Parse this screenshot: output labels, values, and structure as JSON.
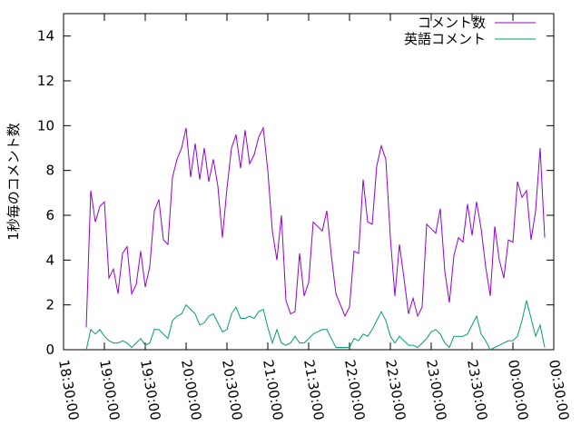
{
  "chart_data": {
    "type": "line",
    "y_label": "1秒毎のコメント数",
    "x": [
      "18:46:40",
      "18:50:00",
      "18:53:20",
      "18:56:40",
      "19:00:00",
      "19:03:20",
      "19:06:40",
      "19:10:00",
      "19:13:20",
      "19:16:40",
      "19:20:00",
      "19:23:20",
      "19:26:40",
      "19:30:00",
      "19:33:20",
      "19:36:40",
      "19:40:00",
      "19:43:20",
      "19:46:40",
      "19:50:00",
      "19:53:20",
      "19:56:40",
      "20:00:00",
      "20:03:20",
      "20:06:40",
      "20:10:00",
      "20:13:20",
      "20:16:40",
      "20:20:00",
      "20:23:20",
      "20:26:40",
      "20:30:00",
      "20:33:20",
      "20:36:40",
      "20:40:00",
      "20:43:20",
      "20:46:40",
      "20:50:00",
      "20:53:20",
      "20:56:40",
      "21:00:00",
      "21:03:20",
      "21:06:40",
      "21:10:00",
      "21:13:20",
      "21:16:40",
      "21:20:00",
      "21:23:20",
      "21:26:40",
      "21:30:00",
      "21:33:20",
      "21:36:40",
      "21:40:00",
      "21:43:20",
      "21:46:40",
      "21:50:00",
      "21:53:20",
      "21:56:40",
      "22:00:00",
      "22:03:20",
      "22:06:40",
      "22:10:00",
      "22:13:20",
      "22:16:40",
      "22:20:00",
      "22:23:20",
      "22:26:40",
      "22:30:00",
      "22:33:20",
      "22:36:40",
      "22:40:00",
      "22:43:20",
      "22:46:40",
      "22:50:00",
      "22:53:20",
      "22:56:40",
      "23:00:00",
      "23:03:20",
      "23:06:40",
      "23:10:00",
      "23:13:20",
      "23:16:40",
      "23:20:00",
      "23:23:20",
      "23:26:40",
      "23:30:00",
      "23:33:20",
      "23:36:40",
      "23:40:00",
      "23:43:20",
      "23:46:40",
      "23:50:00",
      "23:53:20",
      "23:56:40",
      "00:00:00",
      "00:03:20",
      "00:06:40",
      "00:10:00",
      "00:13:20",
      "00:16:40",
      "00:20:00",
      "00:23:20"
    ],
    "series": [
      {
        "name": "コメント数",
        "color": "#9400d3",
        "values": [
          1.0,
          7.1,
          5.7,
          6.4,
          6.6,
          3.2,
          3.6,
          2.5,
          4.3,
          4.6,
          2.5,
          2.9,
          4.4,
          2.8,
          3.7,
          6.2,
          6.7,
          4.9,
          4.7,
          7.7,
          8.5,
          9.0,
          9.9,
          7.7,
          9.2,
          7.6,
          9.0,
          7.5,
          8.5,
          7.3,
          5.0,
          7.2,
          9.0,
          9.6,
          8.1,
          9.8,
          8.3,
          8.7,
          9.5,
          9.9,
          8.0,
          5.3,
          4.0,
          6.0,
          2.2,
          1.6,
          1.7,
          4.3,
          2.4,
          3.0,
          5.7,
          5.5,
          5.3,
          6.2,
          4.2,
          2.5,
          2.0,
          1.5,
          1.9,
          4.4,
          4.3,
          7.6,
          5.7,
          5.6,
          8.2,
          9.1,
          8.5,
          5.0,
          2.4,
          4.7,
          3.2,
          1.6,
          2.3,
          1.5,
          1.9,
          5.6,
          5.4,
          5.2,
          6.3,
          3.5,
          2.1,
          4.2,
          5.0,
          4.8,
          6.5,
          5.1,
          6.6,
          5.4,
          3.7,
          2.4,
          5.5,
          4.0,
          3.2,
          4.9,
          4.8,
          7.5,
          6.8,
          7.1,
          4.9,
          6.2,
          9.0,
          5.0
        ]
      },
      {
        "name": "英語コメント",
        "color": "#009e73",
        "values": [
          0.0,
          0.9,
          0.7,
          0.9,
          0.6,
          0.4,
          0.3,
          0.3,
          0.4,
          0.3,
          0.1,
          0.3,
          0.5,
          0.2,
          0.3,
          0.9,
          0.9,
          0.7,
          0.5,
          1.3,
          1.5,
          1.6,
          2.0,
          1.8,
          1.6,
          1.1,
          1.2,
          1.5,
          1.6,
          1.2,
          0.8,
          0.9,
          1.6,
          1.9,
          1.4,
          1.4,
          1.5,
          1.4,
          1.7,
          1.8,
          1.0,
          0.3,
          0.9,
          0.3,
          0.2,
          0.3,
          0.6,
          0.3,
          0.3,
          0.5,
          0.7,
          0.8,
          0.9,
          0.9,
          0.5,
          0.1,
          0.1,
          0.1,
          0.1,
          0.5,
          0.4,
          0.7,
          0.6,
          0.9,
          1.3,
          1.7,
          1.3,
          0.6,
          0.3,
          0.6,
          0.4,
          0.2,
          0.2,
          0.1,
          0.3,
          0.5,
          0.8,
          0.9,
          0.7,
          0.3,
          0.1,
          0.6,
          0.6,
          0.6,
          0.7,
          1.1,
          1.5,
          0.7,
          0.4,
          0.0,
          0.1,
          0.2,
          0.3,
          0.4,
          0.4,
          0.6,
          1.3,
          2.2,
          1.4,
          0.6,
          1.1,
          0.1
        ]
      }
    ],
    "xlim": [
      "18:30:00",
      "00:30:00"
    ],
    "xticks": [
      "18:30:00",
      "19:00:00",
      "19:30:00",
      "20:00:00",
      "20:30:00",
      "21:00:00",
      "21:30:00",
      "22:00:00",
      "22:30:00",
      "23:00:00",
      "23:30:00",
      "00:00:00",
      "00:30:00"
    ],
    "ylim": [
      0,
      15
    ],
    "yticks": [
      0,
      2,
      4,
      6,
      8,
      10,
      12,
      14
    ],
    "legend": "top-right"
  }
}
